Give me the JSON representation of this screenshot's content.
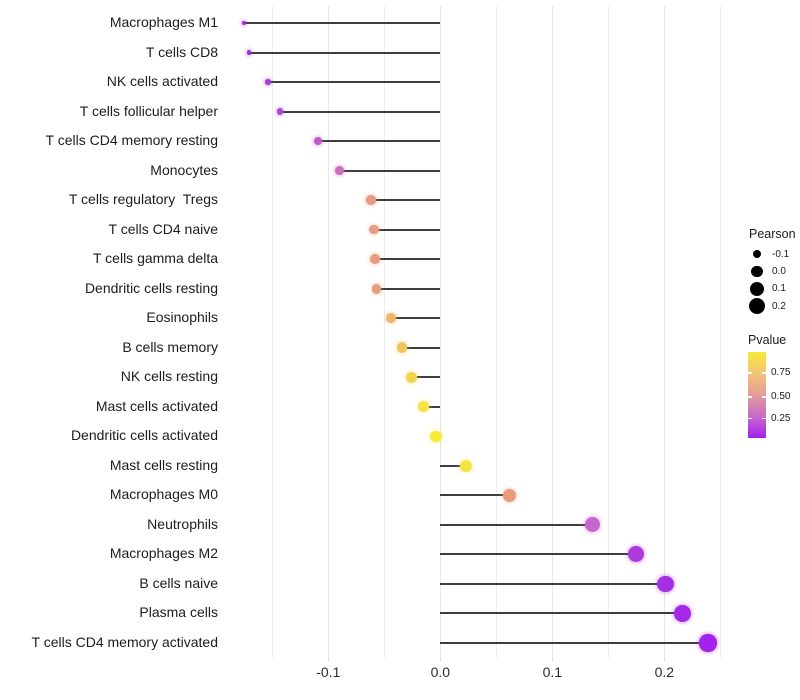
{
  "chart_data": {
    "type": "lollipop",
    "title": "",
    "xlabel": "",
    "ylabel": "",
    "grid": true,
    "legend_position": "right",
    "xlim": [
      -0.196,
      0.262
    ],
    "x_major_ticks": [
      {
        "label": "-0.1",
        "value": -0.1
      },
      {
        "label": "0.0",
        "value": 0.0
      },
      {
        "label": "0.1",
        "value": 0.1
      },
      {
        "label": "0.2",
        "value": 0.2
      }
    ],
    "x_grid_values": [
      -0.15,
      -0.1,
      -0.05,
      0.0,
      0.05,
      0.1,
      0.15,
      0.2,
      0.25
    ],
    "stem_color": "#3e3e3e",
    "rows": [
      {
        "label": "Macrophages M1",
        "pearson": -0.175,
        "pvalue": 0.05,
        "color": "#9B2FD3"
      },
      {
        "label": "T cells CD8",
        "pearson": -0.171,
        "pvalue": 0.05,
        "color": "#9C31D2"
      },
      {
        "label": "NK cells activated",
        "pearson": -0.154,
        "pvalue": 0.09,
        "color": "#A83BD7"
      },
      {
        "label": "T cells follicular helper",
        "pearson": -0.143,
        "pvalue": 0.12,
        "color": "#AB49D4"
      },
      {
        "label": "T cells CD4 memory resting",
        "pearson": -0.109,
        "pvalue": 0.22,
        "color": "#BC5CC9"
      },
      {
        "label": "Monocytes",
        "pearson": -0.09,
        "pvalue": 0.32,
        "color": "#CC70BB"
      },
      {
        "label": "T cells regulatory  Tregs",
        "pearson": -0.062,
        "pvalue": 0.55,
        "color": "#E79B81"
      },
      {
        "label": "T cells CD4 naive",
        "pearson": -0.059,
        "pvalue": 0.55,
        "color": "#E79B80"
      },
      {
        "label": "T cells gamma delta",
        "pearson": -0.058,
        "pvalue": 0.56,
        "color": "#E89C7F"
      },
      {
        "label": "Dendritic cells resting",
        "pearson": -0.057,
        "pvalue": 0.56,
        "color": "#E89C7E"
      },
      {
        "label": "Eosinophils",
        "pearson": -0.044,
        "pvalue": 0.68,
        "color": "#EDB46A"
      },
      {
        "label": "B cells memory",
        "pearson": -0.034,
        "pvalue": 0.75,
        "color": "#F0C45D"
      },
      {
        "label": "NK cells resting",
        "pearson": -0.026,
        "pvalue": 0.8,
        "color": "#F2D450"
      },
      {
        "label": "Mast cells activated",
        "pearson": -0.015,
        "pvalue": 0.87,
        "color": "#F5E244"
      },
      {
        "label": "Dendritic cells activated",
        "pearson": -0.004,
        "pvalue": 0.93,
        "color": "#F8EA38"
      },
      {
        "label": "Mast cells resting",
        "pearson": 0.023,
        "pvalue": 0.87,
        "color": "#F5E243"
      },
      {
        "label": "Macrophages M0",
        "pearson": 0.062,
        "pvalue": 0.56,
        "color": "#E89B7B"
      },
      {
        "label": "Neutrophils",
        "pearson": 0.136,
        "pvalue": 0.27,
        "color": "#C566CD"
      },
      {
        "label": "Macrophages M2",
        "pearson": 0.175,
        "pvalue": 0.11,
        "color": "#AC3ADC"
      },
      {
        "label": "B cells naive",
        "pearson": 0.201,
        "pvalue": 0.07,
        "color": "#A52FE2"
      },
      {
        "label": "Plasma cells",
        "pearson": 0.216,
        "pvalue": 0.05,
        "color": "#A329E7"
      },
      {
        "label": "T cells CD4 memory activated",
        "pearson": 0.239,
        "pvalue": 0.03,
        "color": "#A322EC"
      }
    ],
    "legend_size": {
      "title": "Pearson",
      "items": [
        {
          "label": "-0.1",
          "value": -0.1
        },
        {
          "label": "0.0",
          "value": 0.0
        },
        {
          "label": "0.1",
          "value": 0.1
        },
        {
          "label": "0.2",
          "value": 0.2
        }
      ],
      "dot_color": "#000000"
    },
    "legend_color": {
      "title": "Pvalue",
      "gradient_top_to_bottom": [
        "#F9E93A",
        "#F3C477",
        "#E49B97",
        "#C76ACB",
        "#A11FF0"
      ],
      "ticks": [
        {
          "label": "0.75",
          "frac_from_top": 0.242
        },
        {
          "label": "0.50",
          "frac_from_top": 0.52
        },
        {
          "label": "0.25",
          "frac_from_top": 0.774
        }
      ]
    }
  }
}
